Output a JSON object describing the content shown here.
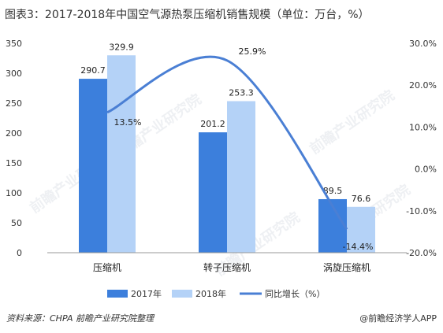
{
  "title": "图表3：2017-2018年中国空气源热泵压缩机销售规模（单位：万台，%）",
  "source": "资料来源：CHPA  前瞻产业研究院整理",
  "brand": "@前瞻经济学人APP",
  "watermark": "前瞻产业研究院",
  "colors": {
    "s2017": "#3c7fdc",
    "s2018": "#b4d2f7",
    "growth": "#4a7fd4"
  },
  "chart_data": {
    "type": "bar",
    "categories": [
      "压缩机",
      "转子压缩机",
      "涡旋压缩机"
    ],
    "series": [
      {
        "name": "2017年",
        "values": [
          290.7,
          201.2,
          89.5
        ],
        "labels": [
          "290.7",
          "201.2",
          "89.5"
        ]
      },
      {
        "name": "2018年",
        "values": [
          329.9,
          253.3,
          76.6
        ],
        "labels": [
          "329.9",
          "253.3",
          "76.6"
        ]
      }
    ],
    "line_series": {
      "name": "同比增长（%）",
      "values": [
        13.5,
        25.9,
        -14.4
      ],
      "labels": [
        "13.5%",
        "25.9%",
        "-14.4%"
      ],
      "axis": "right"
    },
    "ylim": [
      0,
      350
    ],
    "yticks": [
      "0",
      "50",
      "100",
      "150",
      "200",
      "250",
      "300",
      "350"
    ],
    "y2lim": [
      -20,
      30
    ],
    "y2ticks": [
      "-20.0%",
      "-10.0%",
      "0.0%",
      "10.0%",
      "20.0%",
      "30.0%"
    ],
    "grid": false,
    "legend": "bottom"
  }
}
